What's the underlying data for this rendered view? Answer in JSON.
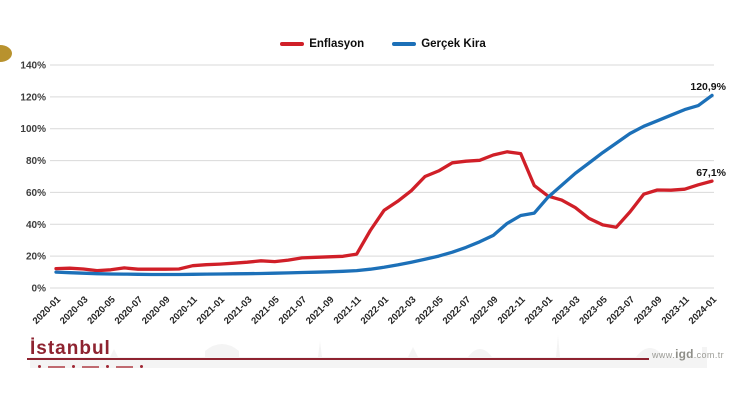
{
  "chart_data": {
    "type": "line",
    "title": "",
    "x_start": "2020-01",
    "x_end": "2024-01",
    "x_interval": "monthly",
    "x_tick_labels": [
      "2020-01",
      "2020-03",
      "2020-05",
      "2020-07",
      "2020-09",
      "2020-11",
      "2021-01",
      "2021-03",
      "2021-05",
      "2021-07",
      "2021-09",
      "2021-11",
      "2022-01",
      "2022-03",
      "2022-05",
      "2022-07",
      "2022-09",
      "2022-11",
      "2023-01",
      "2023-03",
      "2023-05",
      "2023-07",
      "2023-09",
      "2023-11",
      "2024-01"
    ],
    "y_tick_labels": [
      "0%",
      "20%",
      "40%",
      "60%",
      "80%",
      "100%",
      "120%",
      "140%"
    ],
    "ylim": [
      0,
      140
    ],
    "grid": true,
    "legend_position": "top-center",
    "x_label_rotation": -45,
    "series": [
      {
        "name": "Enflasyon",
        "color": "#d01f28",
        "end_label": "67,1%",
        "values": [
          12.2,
          12.4,
          11.9,
          10.9,
          11.4,
          12.6,
          11.8,
          11.8,
          11.8,
          11.9,
          14.0,
          14.6,
          15.0,
          15.6,
          16.2,
          17.1,
          16.6,
          17.5,
          18.9,
          19.3,
          19.6,
          19.9,
          21.3,
          36.1,
          48.7,
          54.4,
          61.1,
          70.0,
          73.5,
          78.6,
          79.6,
          80.2,
          83.5,
          85.5,
          84.4,
          64.3,
          57.7,
          55.2,
          50.5,
          43.7,
          39.6,
          38.2,
          47.8,
          58.9,
          61.5,
          61.4,
          62.0,
          64.8,
          67.1
        ]
      },
      {
        "name": "Gerçek Kira",
        "color": "#1c70b8",
        "end_label": "120,9%",
        "values": [
          10.0,
          9.6,
          9.3,
          9.0,
          8.8,
          8.7,
          8.6,
          8.5,
          8.5,
          8.5,
          8.6,
          8.7,
          8.8,
          8.9,
          9.0,
          9.1,
          9.3,
          9.5,
          9.7,
          9.9,
          10.2,
          10.5,
          10.9,
          11.8,
          13.0,
          14.5,
          16.2,
          18.0,
          20.0,
          22.5,
          25.5,
          29.0,
          33.0,
          40.5,
          45.5,
          47.0,
          57.0,
          64.5,
          72.0,
          78.5,
          85.0,
          91.0,
          97.0,
          101.5,
          105.0,
          108.5,
          112.0,
          114.5,
          120.9
        ]
      }
    ]
  },
  "footer": {
    "logo_text": "İstanbul",
    "url_prefix": "www.",
    "url_brand": "igd",
    "url_suffix": ".com.tr",
    "brand_color": "#8e2330"
  },
  "decor": {
    "gold_accent_color": "#b8922e"
  }
}
